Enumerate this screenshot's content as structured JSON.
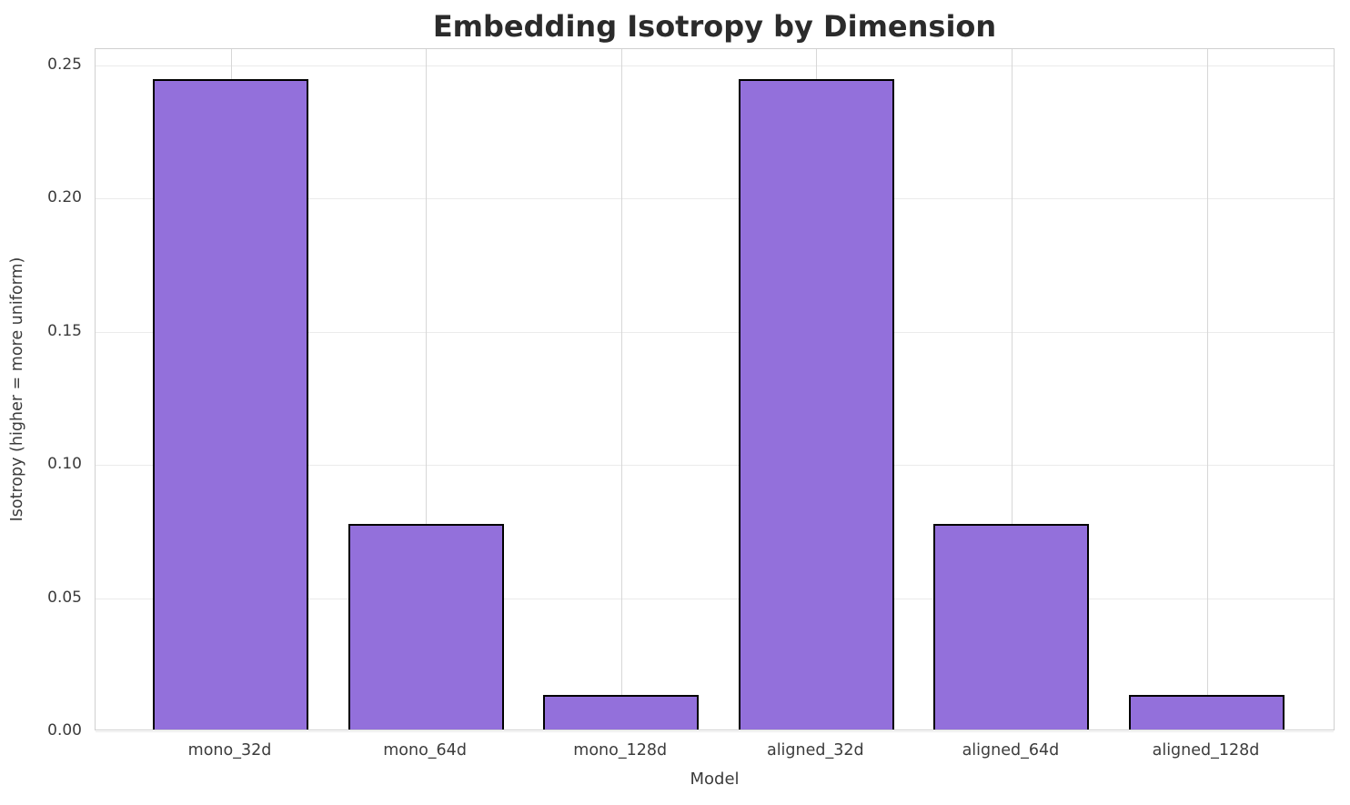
{
  "chart_data": {
    "type": "bar",
    "title": "Embedding Isotropy by Dimension",
    "xlabel": "Model",
    "ylabel": "Isotropy (higher = more uniform)",
    "categories": [
      "mono_32d",
      "mono_64d",
      "mono_128d",
      "aligned_32d",
      "aligned_64d",
      "aligned_128d"
    ],
    "values": [
      0.244,
      0.077,
      0.013,
      0.244,
      0.077,
      0.013
    ],
    "ylim": [
      0,
      0.256
    ],
    "yticks": [
      0.0,
      0.05,
      0.1,
      0.15,
      0.2,
      0.25
    ],
    "ytick_labels": [
      "0.00",
      "0.05",
      "0.10",
      "0.15",
      "0.20",
      "0.25"
    ],
    "bar_color": "#9370DB",
    "bar_edge_color": "#000000",
    "grid": true,
    "grid_axis": "both",
    "legend": null,
    "background_color": "#ffffff"
  }
}
